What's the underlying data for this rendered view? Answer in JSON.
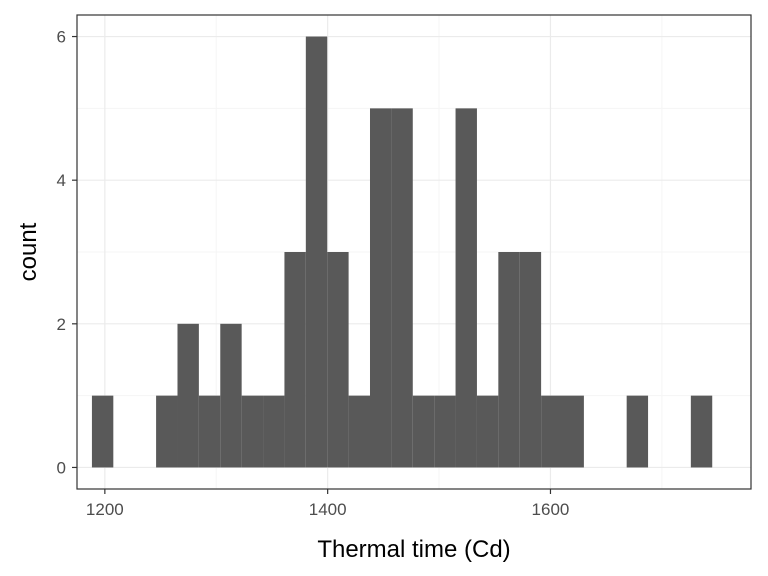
{
  "chart_data": {
    "type": "bar",
    "title": "",
    "xlabel": "Thermal time (Cd)",
    "ylabel": "count",
    "xlim": [
      1175,
      1780
    ],
    "ylim": [
      -0.3,
      6.3
    ],
    "x_ticks": [
      1200,
      1400,
      1600
    ],
    "y_ticks": [
      0,
      2,
      4,
      6
    ],
    "grid": true,
    "legend": "none",
    "bin_width": 19.2,
    "bin_centers": [
      1198,
      1217.2,
      1236.4,
      1255.6,
      1274.8,
      1294,
      1313.2,
      1332.4,
      1351.6,
      1370.8,
      1390,
      1409.2,
      1428.4,
      1447.6,
      1466.8,
      1486,
      1505.2,
      1524.4,
      1543.6,
      1562.8,
      1582,
      1601.2,
      1620.4,
      1639.6,
      1658.8,
      1678,
      1697.2,
      1716.4,
      1735.6,
      1754.8
    ],
    "values": [
      1,
      0,
      0,
      1,
      2,
      1,
      2,
      1,
      1,
      3,
      6,
      3,
      1,
      5,
      5,
      1,
      1,
      5,
      1,
      3,
      3,
      1,
      1,
      0,
      0,
      1,
      0,
      0,
      1,
      0
    ],
    "colors": {
      "bar": "#595959",
      "panel_border": "#333333",
      "grid_major": "#ebebeb",
      "grid_minor": "#f5f5f5",
      "tick": "#4d4d4d"
    }
  }
}
